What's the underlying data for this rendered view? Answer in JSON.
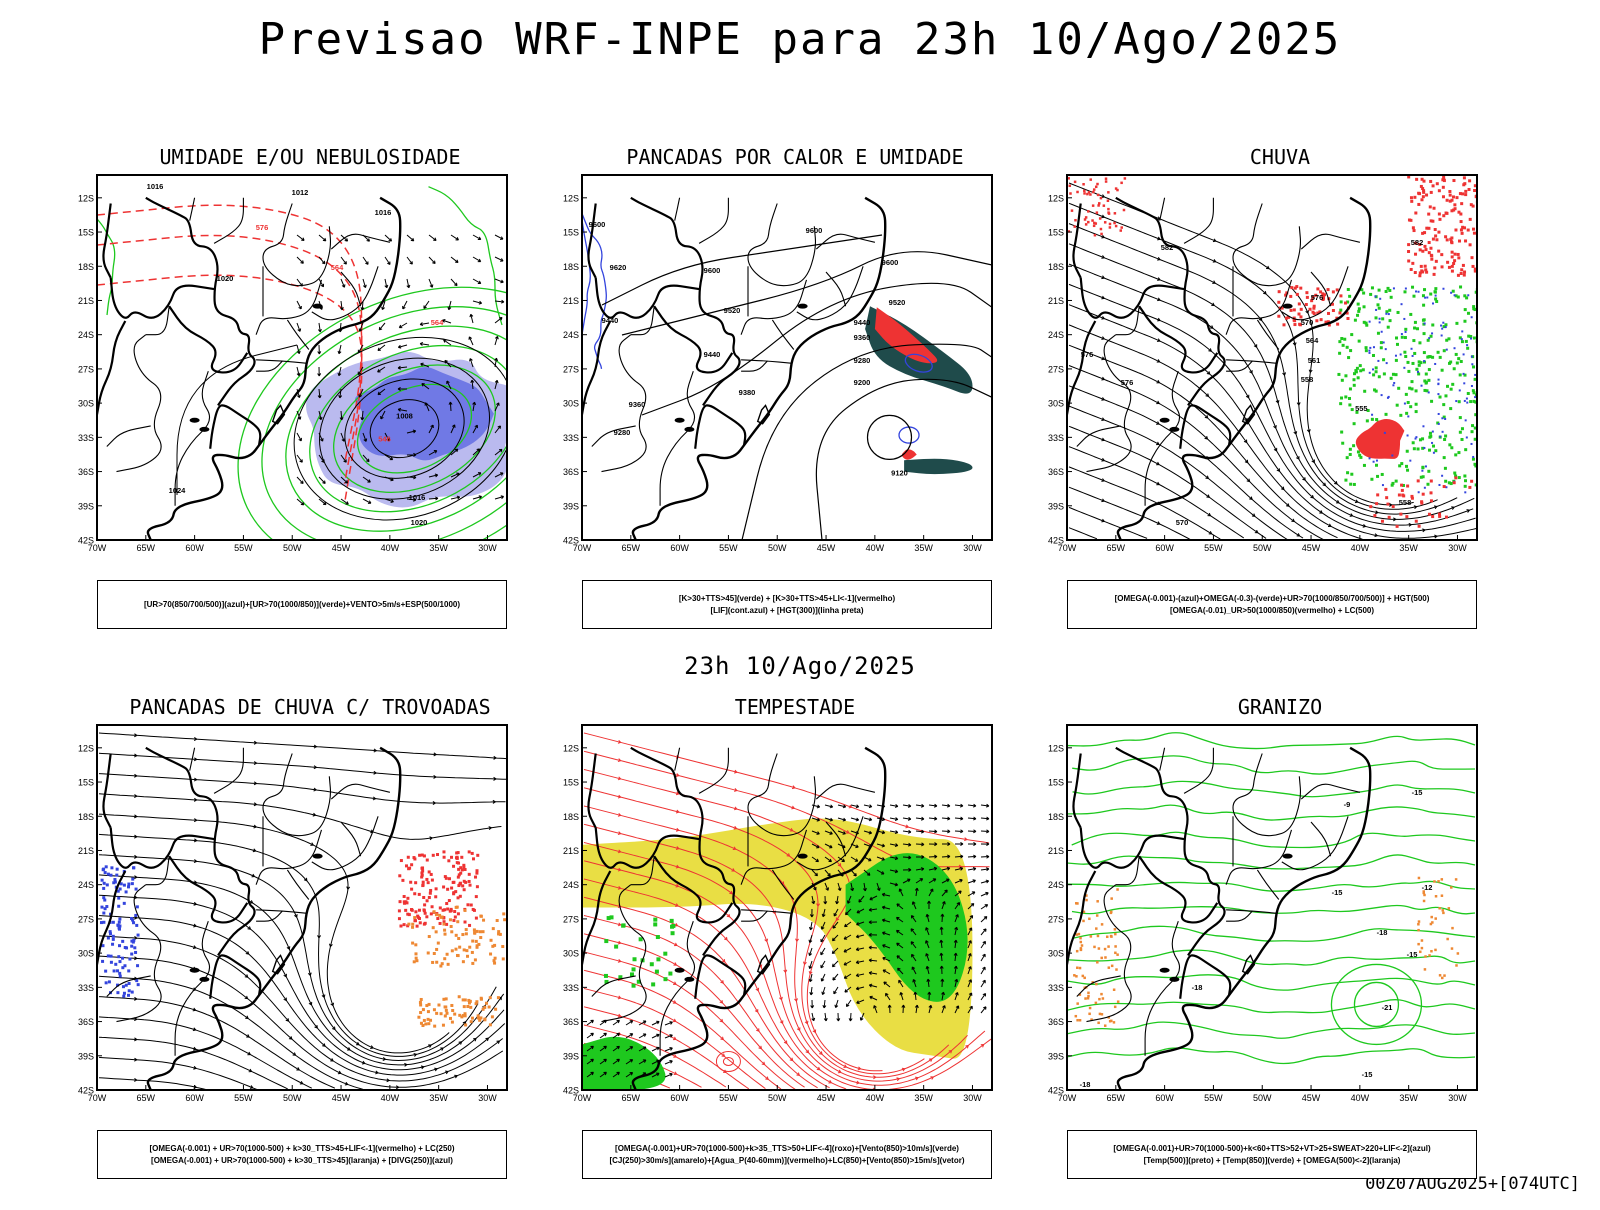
{
  "main_title": "Previsao WRF-INPE  para 23h 10/Ago/2025",
  "mid_date": "23h 10/Ago/2025",
  "run_label": "00Z07AUG2025+[074UTC]",
  "axes": {
    "lat_ticks": [
      "12S",
      "15S",
      "18S",
      "21S",
      "24S",
      "27S",
      "30S",
      "33S",
      "36S",
      "39S",
      "42S"
    ],
    "lon_ticks": [
      "70W",
      "65W",
      "60W",
      "55W",
      "50W",
      "45W",
      "40W",
      "35W",
      "30W"
    ]
  },
  "colors": {
    "blue": "#3344dd",
    "green": "#1ec81e",
    "red": "#ee3333",
    "orange": "#ee8833",
    "yellow": "#e8dc3a",
    "darkteal": "#1f4b4b",
    "lavender": "#9c9ce8",
    "black": "#000000"
  },
  "panels": [
    {
      "id": "umidade",
      "title": "UMIDADE E/OU NEBULOSIDADE",
      "legend": [
        "[UR>70(850/700/500)](azul)+[UR>70(1000/850)](verde)+VENTO>5m/s+ESP(500/1000)"
      ],
      "labels": [
        "1016",
        "1012",
        "1016",
        "1016",
        "1020",
        "1020",
        "1016",
        "1012",
        "1020",
        "1024",
        "1016",
        "1008",
        "1016",
        "1020",
        "1016",
        "1024",
        "1016",
        "576",
        "570",
        "564",
        "558",
        "552",
        "546",
        "564",
        "558"
      ]
    },
    {
      "id": "pancadas-calor",
      "title": "PANCADAS POR CALOR E UMIDADE",
      "legend": [
        "[K>30+TTS>45](verde) + [K>30+TTS>45+LI<-1](vermelho)",
        "[LIF](cont.azul) + [HGT(300)](linha preta)"
      ],
      "labels": [
        "9600",
        "9620",
        "9600",
        "9600",
        "9520",
        "9440",
        "9440",
        "9360",
        "9380",
        "9280",
        "9360",
        "9200",
        "9120",
        "9280",
        "9520"
      ]
    },
    {
      "id": "chuva",
      "title": "CHUVA",
      "legend": [
        "[OMEGA(-0.001)-(azul)+OMEGA(-0.3)-(verde)+UR>70(1000/850/700/500)] + HGT(500)",
        "[OMEGA(-0.01)_UR>50(1000/850)(vermelho) + LC(500)"
      ],
      "labels": [
        "582",
        "582",
        "576",
        "576",
        "570",
        "564",
        "561",
        "558",
        "555",
        "570",
        "576",
        "576",
        "558"
      ]
    },
    {
      "id": "pancadas-trovoadas",
      "title": "PANCADAS DE CHUVA C/ TROVOADAS",
      "legend": [
        "[OMEGA(-0.001) + UR>70(1000-500) + k>30_TTS>45+LIF<-1](vermelho) + LC(250)",
        "[OMEGA(-0.001) + UR>70(1000-500) + k>30_TTS>45](laranja) + [DIVG(250)](azul)"
      ],
      "labels": []
    },
    {
      "id": "tempestade",
      "title": "TEMPESTADE",
      "legend": [
        "[OMEGA(-0.001)+UR>70(1000-500)+k>35_TTS>50+LIF<-4](roxo)+[Vento(850)>10m/s](verde)",
        "[CJ(250)>30m/s](amarelo)+[Agua_P(40-60mm)](vermelho)+LC(850)+[Vento(850)>15m/s](vetor)"
      ],
      "labels": []
    },
    {
      "id": "granizo",
      "title": "GRANIZO",
      "legend": [
        "[OMEGA(-0.001)+UR>70(1000-500)+k<60+TTS>52+VT>25+SWEAT>220+LIF<-2](azul)",
        "[Temp(500)](preto) + [Temp(850)](verde) + [OMEGA(500)<-2](laranja)"
      ],
      "labels": [
        "-15",
        "-12",
        "-18",
        "-18",
        "-21",
        "-15",
        "-15",
        "-18",
        "-9",
        "-6",
        "-15"
      ]
    }
  ]
}
